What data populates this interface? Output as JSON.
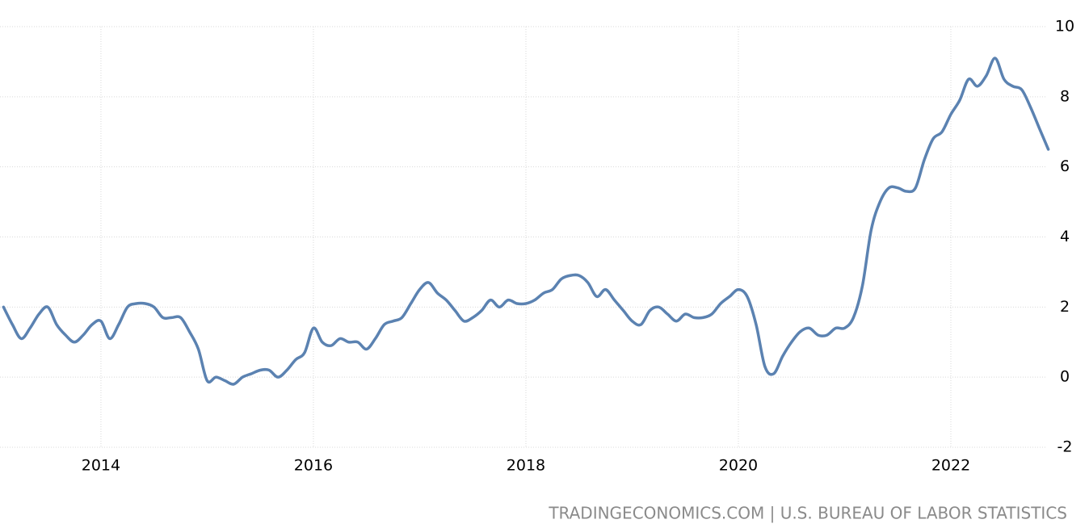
{
  "chart_data": {
    "type": "line",
    "source": "TRADINGECONOMICS.COM | U.S. BUREAU OF LABOR STATISTICS",
    "x": [
      2013.083,
      2013.167,
      2013.25,
      2013.333,
      2013.417,
      2013.5,
      2013.583,
      2013.667,
      2013.75,
      2013.833,
      2013.917,
      2014,
      2014.083,
      2014.167,
      2014.25,
      2014.333,
      2014.417,
      2014.5,
      2014.583,
      2014.667,
      2014.75,
      2014.833,
      2014.917,
      2015,
      2015.083,
      2015.167,
      2015.25,
      2015.333,
      2015.417,
      2015.5,
      2015.583,
      2015.667,
      2015.75,
      2015.833,
      2015.917,
      2016,
      2016.083,
      2016.167,
      2016.25,
      2016.333,
      2016.417,
      2016.5,
      2016.583,
      2016.667,
      2016.75,
      2016.833,
      2016.917,
      2017,
      2017.083,
      2017.167,
      2017.25,
      2017.333,
      2017.417,
      2017.5,
      2017.583,
      2017.667,
      2017.75,
      2017.833,
      2017.917,
      2018,
      2018.083,
      2018.167,
      2018.25,
      2018.333,
      2018.417,
      2018.5,
      2018.583,
      2018.667,
      2018.75,
      2018.833,
      2018.917,
      2019,
      2019.083,
      2019.167,
      2019.25,
      2019.333,
      2019.417,
      2019.5,
      2019.583,
      2019.667,
      2019.75,
      2019.833,
      2019.917,
      2020,
      2020.083,
      2020.167,
      2020.25,
      2020.333,
      2020.417,
      2020.5,
      2020.583,
      2020.667,
      2020.75,
      2020.833,
      2020.917,
      2021,
      2021.083,
      2021.167,
      2021.25,
      2021.333,
      2021.417,
      2021.5,
      2021.583,
      2021.667,
      2021.75,
      2021.833,
      2021.917,
      2022,
      2022.083,
      2022.167,
      2022.25,
      2022.333,
      2022.417,
      2022.5,
      2022.583,
      2022.667,
      2022.75,
      2022.833,
      2022.917
    ],
    "series": [
      {
        "color": "#5b82b1",
        "values": [
          2.0,
          1.5,
          1.1,
          1.4,
          1.8,
          2.0,
          1.5,
          1.2,
          1.0,
          1.2,
          1.5,
          1.6,
          1.1,
          1.5,
          2.0,
          2.1,
          2.1,
          2.0,
          1.7,
          1.7,
          1.7,
          1.3,
          0.8,
          -0.1,
          0.0,
          -0.1,
          -0.2,
          0.0,
          0.1,
          0.2,
          0.2,
          0.0,
          0.2,
          0.5,
          0.7,
          1.4,
          1.0,
          0.9,
          1.1,
          1.0,
          1.0,
          0.8,
          1.1,
          1.5,
          1.6,
          1.7,
          2.1,
          2.5,
          2.7,
          2.4,
          2.2,
          1.9,
          1.6,
          1.7,
          1.9,
          2.2,
          2.0,
          2.2,
          2.1,
          2.1,
          2.2,
          2.4,
          2.5,
          2.8,
          2.9,
          2.9,
          2.7,
          2.3,
          2.5,
          2.2,
          1.9,
          1.6,
          1.5,
          1.9,
          2.0,
          1.8,
          1.6,
          1.8,
          1.7,
          1.7,
          1.8,
          2.1,
          2.3,
          2.5,
          2.3,
          1.5,
          0.3,
          0.1,
          0.6,
          1.0,
          1.3,
          1.4,
          1.2,
          1.2,
          1.4,
          1.4,
          1.7,
          2.6,
          4.2,
          5.0,
          5.4,
          5.4,
          5.3,
          5.4,
          6.2,
          6.8,
          7.0,
          7.5,
          7.9,
          8.5,
          8.3,
          8.6,
          9.1,
          8.5,
          8.3,
          8.2,
          7.7,
          7.1,
          6.5
        ]
      }
    ],
    "xlim": [
      2013.05,
      2022.92
    ],
    "xticks": [
      2014,
      2016,
      2018,
      2020,
      2022
    ],
    "ylim": [
      -2,
      10
    ],
    "yticks": [
      -2,
      0,
      2,
      4,
      6,
      8,
      10
    ],
    "grid": true
  }
}
